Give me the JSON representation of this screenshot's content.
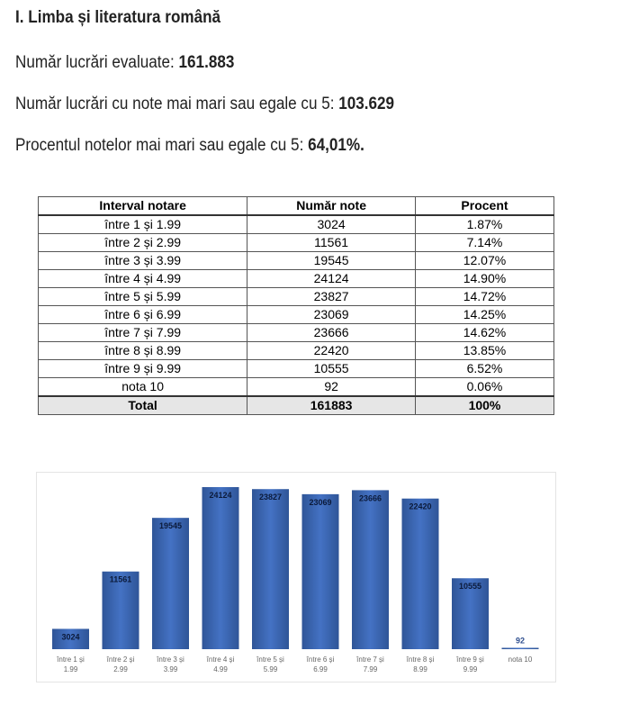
{
  "heading": "I. Limba și literatura română",
  "stats": [
    {
      "label": "Număr lucrări evaluate: ",
      "value": "161.883"
    },
    {
      "label": "Număr lucrări cu note mai mari sau egale cu 5: ",
      "value": "103.629"
    },
    {
      "label": "Procentul notelor mai mari sau egale cu 5: ",
      "value": "64,01%."
    }
  ],
  "table": {
    "headers": [
      "Interval notare",
      "Număr note",
      "Procent"
    ],
    "rows": [
      [
        "între 1 și 1.99",
        "3024",
        "1.87%"
      ],
      [
        "între 2 și 2.99",
        "11561",
        "7.14%"
      ],
      [
        "între 3 și 3.99",
        "19545",
        "12.07%"
      ],
      [
        "între 4 și 4.99",
        "24124",
        "14.90%"
      ],
      [
        "între 5 și 5.99",
        "23827",
        "14.72%"
      ],
      [
        "între 6 și 6.99",
        "23069",
        "14.25%"
      ],
      [
        "între 7 și 7.99",
        "23666",
        "14.62%"
      ],
      [
        "între 8 și 8.99",
        "22420",
        "13.85%"
      ],
      [
        "între 9 și 9.99",
        "10555",
        "6.52%"
      ],
      [
        "nota 10",
        "92",
        "0.06%"
      ]
    ],
    "total": [
      "Total",
      "161883",
      "100%"
    ]
  },
  "chart_data": {
    "type": "bar",
    "categories": [
      [
        "între 1 și",
        "1.99"
      ],
      [
        "între 2 și",
        "2.99"
      ],
      [
        "între 3 și",
        "3.99"
      ],
      [
        "între 4 și",
        "4.99"
      ],
      [
        "între 5 și",
        "5.99"
      ],
      [
        "între 6 și",
        "6.99"
      ],
      [
        "între 7 și",
        "7.99"
      ],
      [
        "între 8 și",
        "8.99"
      ],
      [
        "între 9 și",
        "9.99"
      ],
      [
        "nota 10"
      ]
    ],
    "values": [
      3024,
      11561,
      19545,
      24124,
      23827,
      23069,
      23666,
      22420,
      10555,
      92
    ],
    "ylim": [
      0,
      24124
    ],
    "grid": false,
    "data_labels": true,
    "bar_color": "#4472c4",
    "bar_color_dark": "#2f5597"
  }
}
